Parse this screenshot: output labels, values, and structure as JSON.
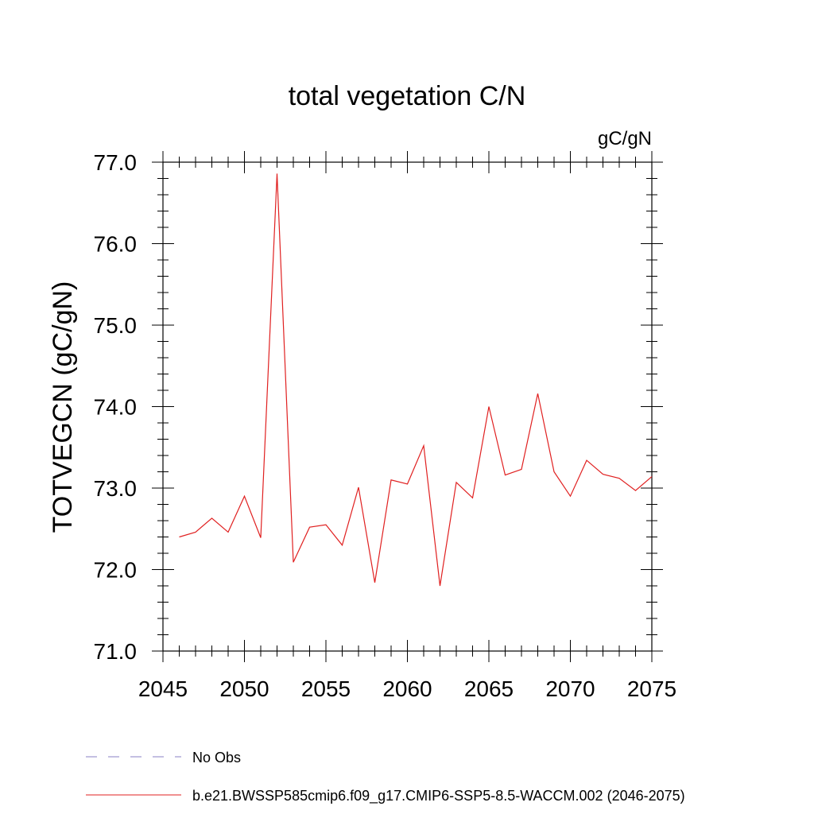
{
  "chart_data": {
    "type": "line",
    "title": "total vegetation C/N",
    "units_label": "gC/gN",
    "ylabel": "TOTVEGCN  (gC/gN)",
    "xlabel": "",
    "xlim": [
      2045,
      2075
    ],
    "ylim": [
      71.0,
      77.0
    ],
    "x_ticks": [
      2045,
      2050,
      2055,
      2060,
      2065,
      2070,
      2075
    ],
    "x_tick_labels": [
      "2045",
      "2050",
      "2055",
      "2060",
      "2065",
      "2070",
      "2075"
    ],
    "y_ticks": [
      71.0,
      72.0,
      73.0,
      74.0,
      75.0,
      76.0,
      77.0
    ],
    "y_tick_labels": [
      "71.0",
      "72.0",
      "73.0",
      "74.0",
      "75.0",
      "76.0",
      "77.0"
    ],
    "grid": false,
    "legend_position": "bottom",
    "legend": [
      {
        "label": "No Obs",
        "color": "#8a7fc4",
        "style": "dashed"
      },
      {
        "label": "b.e21.BWSSP585cmip6.f09_g17.CMIP6-SSP5-8.5-WACCM.002 (2046-2075)",
        "color": "#e02020",
        "style": "solid"
      }
    ],
    "series": [
      {
        "name": "b.e21.BWSSP585cmip6.f09_g17.CMIP6-SSP5-8.5-WACCM.002 (2046-2075)",
        "color": "#e02020",
        "x": [
          2046,
          2047,
          2048,
          2049,
          2050,
          2051,
          2052,
          2053,
          2054,
          2055,
          2056,
          2057,
          2058,
          2059,
          2060,
          2061,
          2062,
          2063,
          2064,
          2065,
          2066,
          2067,
          2068,
          2069,
          2070,
          2071,
          2072,
          2073,
          2074,
          2075
        ],
        "y": [
          72.4,
          72.46,
          72.63,
          72.46,
          72.9,
          72.39,
          76.86,
          72.09,
          72.52,
          72.55,
          72.3,
          73.01,
          71.84,
          73.1,
          73.05,
          73.52,
          71.8,
          73.07,
          72.88,
          74.0,
          73.16,
          73.23,
          74.16,
          73.2,
          72.9,
          73.34,
          73.17,
          73.12,
          72.97,
          73.14
        ]
      }
    ]
  }
}
